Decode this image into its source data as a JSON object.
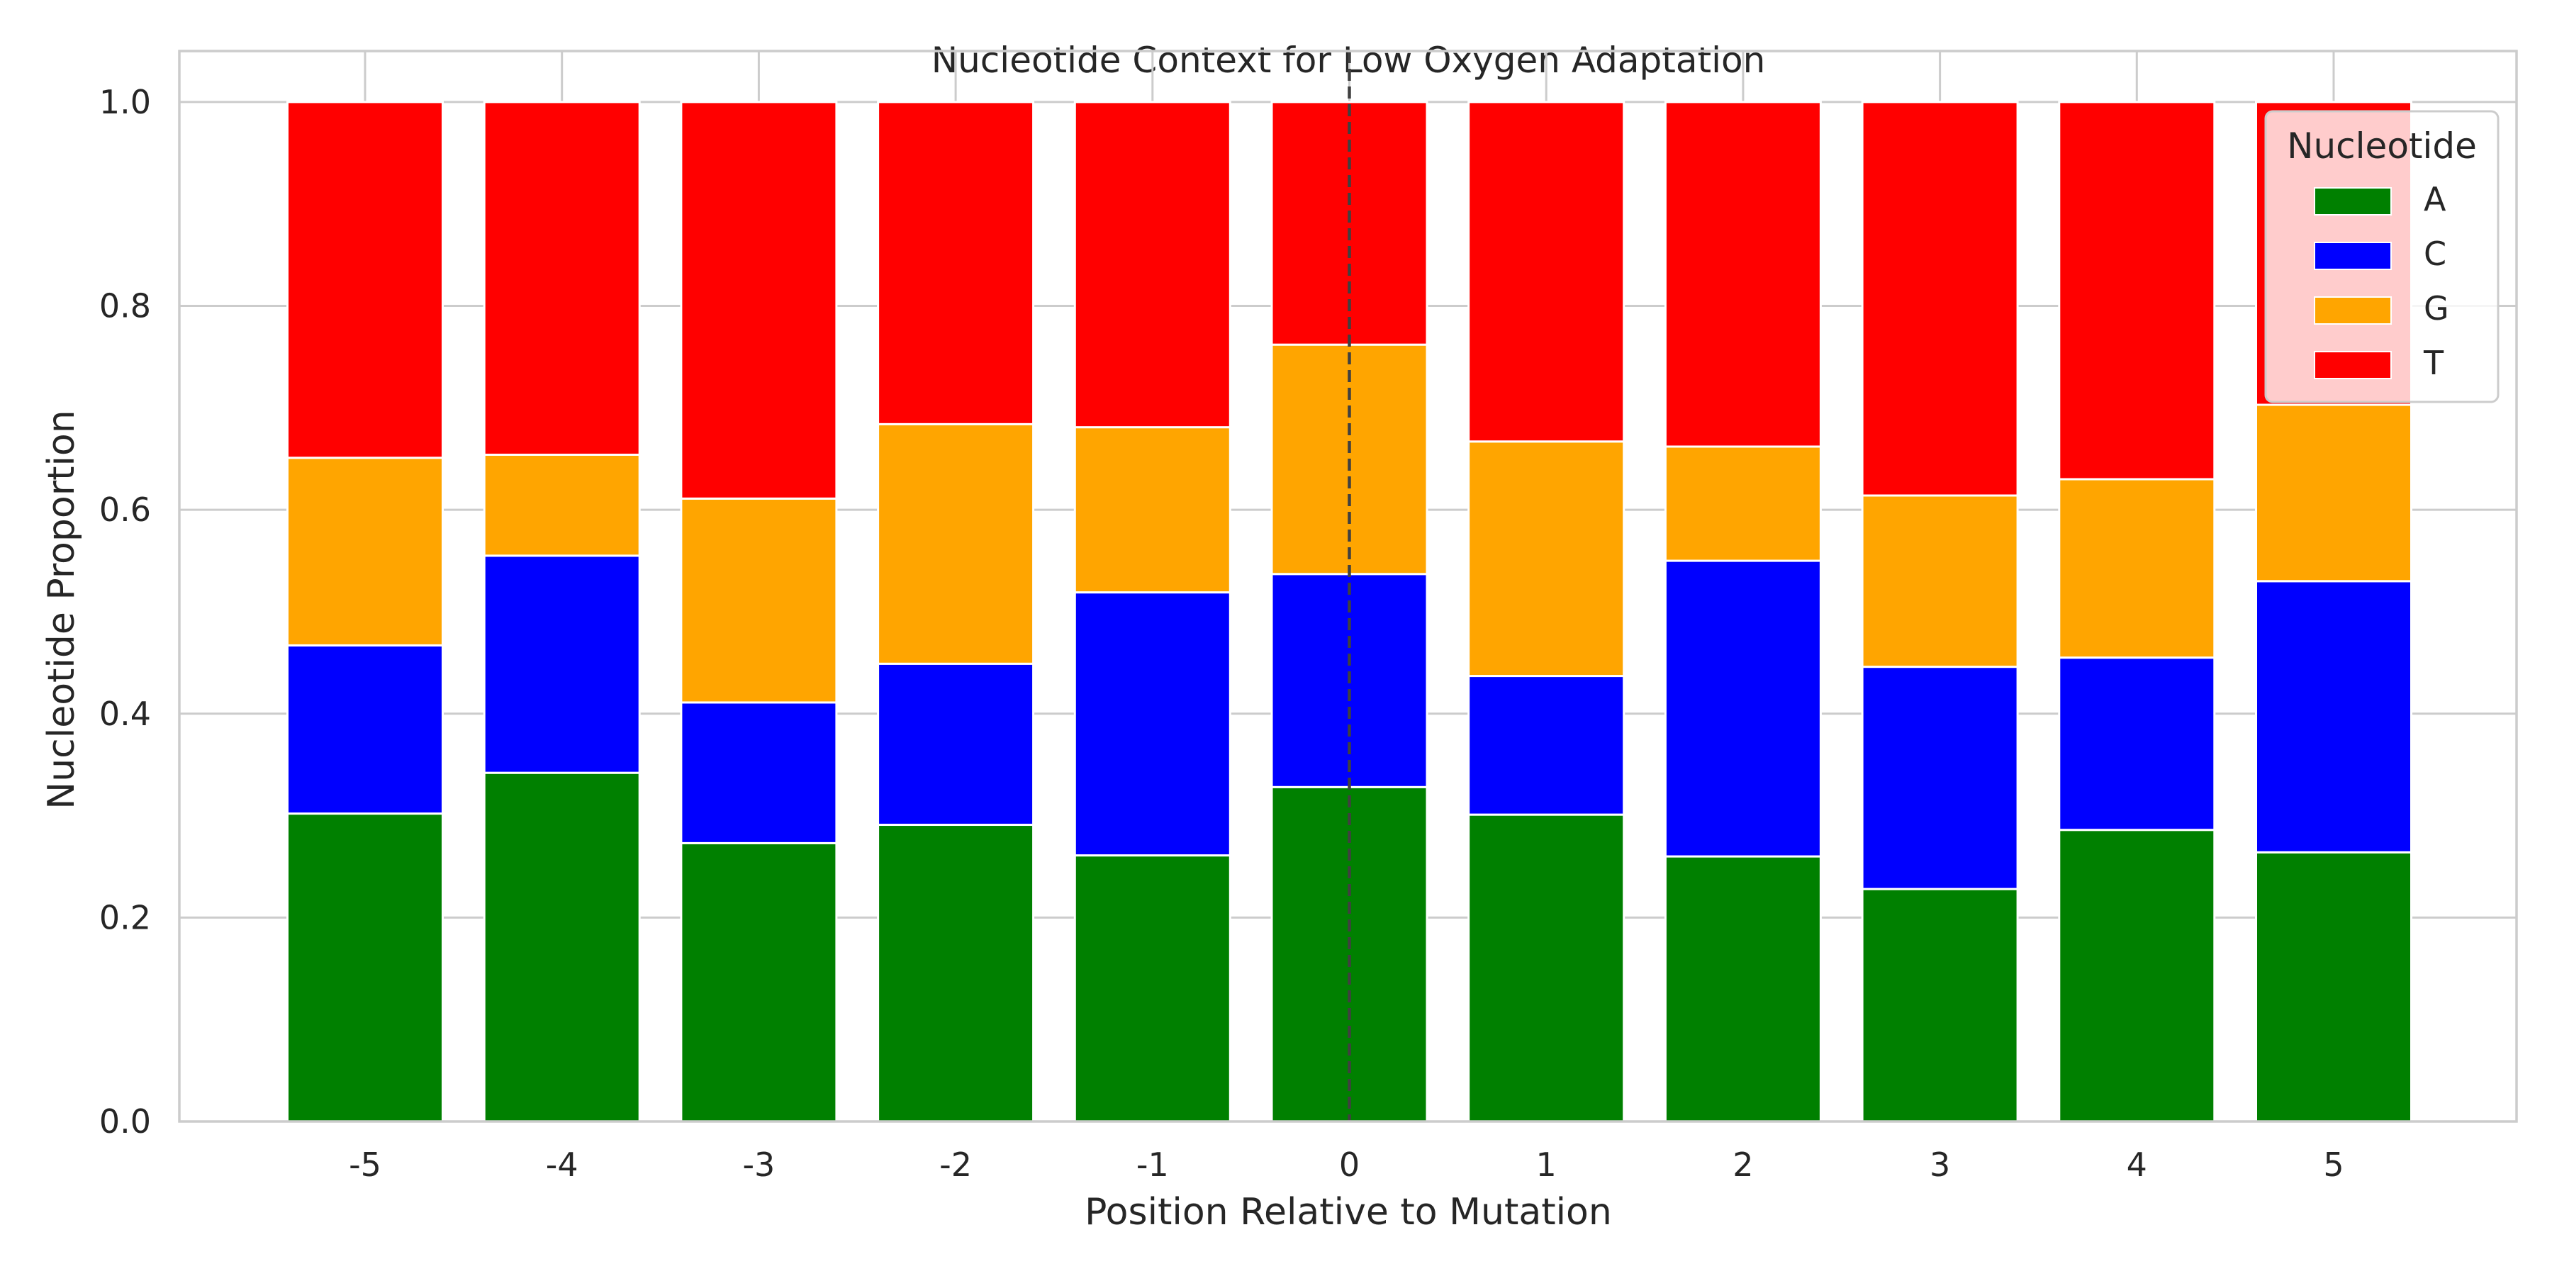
{
  "chart_data": {
    "type": "bar",
    "stacked": true,
    "title": "Nucleotide Context for Low Oxygen Adaptation",
    "xlabel": "Position Relative to Mutation",
    "ylabel": "Nucleotide Proportion",
    "ylim": [
      0,
      1.05
    ],
    "yticks": [
      "0.0",
      "0.2",
      "0.4",
      "0.6",
      "0.8",
      "1.0"
    ],
    "categories": [
      "-5",
      "-4",
      "-3",
      "-2",
      "-1",
      "0",
      "1",
      "2",
      "3",
      "4",
      "5"
    ],
    "series": [
      {
        "name": "A",
        "color": "#008000",
        "values": [
          0.302,
          0.342,
          0.273,
          0.291,
          0.261,
          0.328,
          0.301,
          0.26,
          0.228,
          0.286,
          0.264
        ]
      },
      {
        "name": "C",
        "color": "#0000ff",
        "values": [
          0.165,
          0.213,
          0.138,
          0.158,
          0.258,
          0.209,
          0.136,
          0.29,
          0.218,
          0.169,
          0.266
        ]
      },
      {
        "name": "G",
        "color": "#ffa500",
        "values": [
          0.184,
          0.099,
          0.2,
          0.235,
          0.162,
          0.225,
          0.23,
          0.112,
          0.168,
          0.175,
          0.173
        ]
      },
      {
        "name": "T",
        "color": "#ff0000",
        "values": [
          0.349,
          0.346,
          0.389,
          0.316,
          0.319,
          0.238,
          0.333,
          0.338,
          0.386,
          0.37,
          0.297
        ]
      }
    ],
    "reference_line": {
      "x": "0",
      "style": "dashed",
      "color": "#404040"
    },
    "legend": {
      "title": "Nucleotide",
      "placement": "top-right"
    },
    "grid": true,
    "grid_color": "#cccccc",
    "axes_color": "#cccccc"
  }
}
